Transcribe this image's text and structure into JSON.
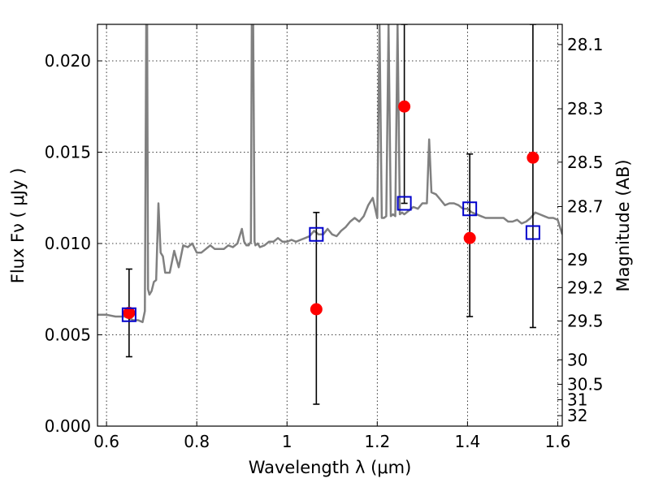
{
  "chart_data": {
    "type": "line",
    "xlabel": "Wavelength  λ (μm)",
    "ylabel": "Flux  Fν  ( μJy )",
    "y2label": "Magnitude (AB)",
    "xlim": [
      0.58,
      1.61
    ],
    "ylim": [
      0.0,
      0.022
    ],
    "grid": true,
    "x_ticks": [
      0.6,
      0.8,
      1.0,
      1.2,
      1.4,
      1.6
    ],
    "x_tick_labels": [
      "0.6",
      "0.8",
      "1",
      "1.2",
      "1.4",
      "1.6"
    ],
    "y_ticks": [
      0.0,
      0.005,
      0.01,
      0.015,
      0.02
    ],
    "y_tick_labels": [
      "0.000",
      "0.005",
      "0.010",
      "0.015",
      "0.020"
    ],
    "y2_ticks": [
      {
        "mag": 28.1,
        "label": "28.1"
      },
      {
        "mag": 28.3,
        "label": "28.3"
      },
      {
        "mag": 28.5,
        "label": "28.5"
      },
      {
        "mag": 28.7,
        "label": "28.7"
      },
      {
        "mag": 29.0,
        "label": "29"
      },
      {
        "mag": 29.2,
        "label": "29.2"
      },
      {
        "mag": 29.5,
        "label": "29.5"
      },
      {
        "mag": 30.0,
        "label": "30"
      },
      {
        "mag": 30.5,
        "label": "30.5"
      },
      {
        "mag": 31.0,
        "label": "31"
      },
      {
        "mag": 32.0,
        "label": "32"
      }
    ],
    "series": [
      {
        "color": "#808080",
        "x": [
          0.58,
          0.6,
          0.62,
          0.64,
          0.66,
          0.67,
          0.68,
          0.685,
          0.688,
          0.69,
          0.692,
          0.695,
          0.7,
          0.705,
          0.71,
          0.715,
          0.72,
          0.725,
          0.73,
          0.74,
          0.75,
          0.76,
          0.77,
          0.78,
          0.79,
          0.8,
          0.81,
          0.82,
          0.83,
          0.84,
          0.85,
          0.86,
          0.87,
          0.88,
          0.89,
          0.9,
          0.905,
          0.91,
          0.915,
          0.92,
          0.922,
          0.925,
          0.928,
          0.93,
          0.935,
          0.94,
          0.95,
          0.96,
          0.97,
          0.98,
          0.99,
          1.0,
          1.01,
          1.02,
          1.03,
          1.04,
          1.05,
          1.06,
          1.07,
          1.08,
          1.09,
          1.1,
          1.11,
          1.12,
          1.13,
          1.14,
          1.15,
          1.16,
          1.17,
          1.18,
          1.19,
          1.2,
          1.205,
          1.21,
          1.215,
          1.22,
          1.225,
          1.23,
          1.235,
          1.24,
          1.245,
          1.25,
          1.255,
          1.26,
          1.265,
          1.27,
          1.28,
          1.29,
          1.3,
          1.31,
          1.315,
          1.32,
          1.33,
          1.34,
          1.35,
          1.36,
          1.37,
          1.38,
          1.39,
          1.4,
          1.41,
          1.42,
          1.43,
          1.44,
          1.45,
          1.46,
          1.47,
          1.48,
          1.49,
          1.5,
          1.51,
          1.52,
          1.53,
          1.54,
          1.55,
          1.56,
          1.57,
          1.58,
          1.59,
          1.6,
          1.61
        ],
        "y": [
          0.0061,
          0.0061,
          0.006,
          0.006,
          0.0058,
          0.0058,
          0.0057,
          0.0063,
          0.022,
          0.022,
          0.0075,
          0.0072,
          0.0074,
          0.0079,
          0.008,
          0.0122,
          0.0095,
          0.0093,
          0.0084,
          0.0084,
          0.0096,
          0.0087,
          0.0099,
          0.0098,
          0.01,
          0.0095,
          0.0095,
          0.0097,
          0.0099,
          0.0097,
          0.0097,
          0.0097,
          0.0099,
          0.0098,
          0.01,
          0.0108,
          0.0101,
          0.0099,
          0.0099,
          0.0101,
          0.022,
          0.022,
          0.0101,
          0.0099,
          0.01,
          0.0098,
          0.0099,
          0.0101,
          0.0101,
          0.0103,
          0.0101,
          0.0101,
          0.0102,
          0.0101,
          0.0102,
          0.0103,
          0.0104,
          0.0107,
          0.0105,
          0.0105,
          0.0108,
          0.0105,
          0.0104,
          0.0107,
          0.0109,
          0.0112,
          0.0114,
          0.0112,
          0.0115,
          0.0121,
          0.0125,
          0.0114,
          0.022,
          0.0114,
          0.0114,
          0.0115,
          0.022,
          0.0115,
          0.0116,
          0.0115,
          0.022,
          0.0116,
          0.0117,
          0.0116,
          0.0117,
          0.0118,
          0.012,
          0.0119,
          0.0122,
          0.0122,
          0.0157,
          0.0128,
          0.0127,
          0.0124,
          0.0121,
          0.0122,
          0.0122,
          0.0121,
          0.0119,
          0.0119,
          0.0117,
          0.0116,
          0.0115,
          0.0114,
          0.0114,
          0.0114,
          0.0114,
          0.0114,
          0.0112,
          0.0112,
          0.0113,
          0.0111,
          0.0112,
          0.0114,
          0.0117,
          0.0116,
          0.0115,
          0.0114,
          0.0114,
          0.0113,
          0.0105
        ]
      }
    ],
    "measured_points": {
      "color": "#ff0000",
      "x": [
        0.65,
        1.065,
        1.26,
        1.405,
        1.545
      ],
      "y": [
        0.0062,
        0.0064,
        0.0175,
        0.0103,
        0.0147
      ]
    },
    "model_points": {
      "color": "#0000cc",
      "x": [
        0.65,
        1.065,
        1.26,
        1.405,
        1.545
      ],
      "y": [
        0.0061,
        0.0105,
        0.0122,
        0.0119,
        0.0106
      ],
      "yerr_low": [
        0.0038,
        0.0012,
        0.0122,
        0.006,
        0.0054
      ],
      "yerr_high": [
        0.0086,
        0.0117,
        0.022,
        0.0149,
        0.022
      ]
    }
  }
}
